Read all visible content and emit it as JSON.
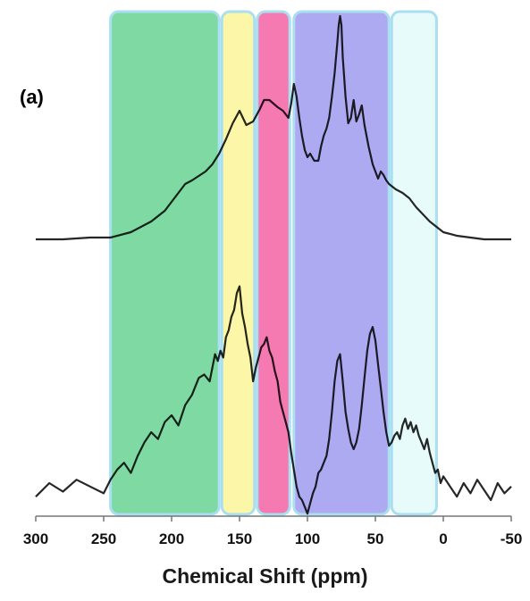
{
  "panel_label": "(a)",
  "chart_data": {
    "type": "line",
    "title": "",
    "xlabel": "Chemical Shift (ppm)",
    "ylabel": "",
    "xlim": [
      300,
      -50
    ],
    "x_reversed": true,
    "x_ticks": [
      300,
      250,
      200,
      150,
      100,
      50,
      0,
      -50
    ],
    "x_tick_labels": [
      "300",
      "250",
      "200",
      "150",
      "100",
      "50",
      "0",
      "-50"
    ],
    "grid": false,
    "regions": [
      {
        "from": 245,
        "to": 165,
        "color": "#7fd9a3"
      },
      {
        "from": 163,
        "to": 139,
        "color": "#fbf6a8"
      },
      {
        "from": 137,
        "to": 113,
        "color": "#f57ab2"
      },
      {
        "from": 110,
        "to": 40,
        "color": "#aeaaf2"
      },
      {
        "from": 38,
        "to": 5,
        "color": "#e6fbfa"
      }
    ],
    "series": [
      {
        "x": [
          300,
          280,
          260,
          250,
          245,
          230,
          215,
          205,
          195,
          190,
          185,
          175,
          170,
          165,
          160,
          155,
          150,
          145,
          140,
          135,
          132,
          128,
          122,
          118,
          114,
          112,
          110,
          108,
          106,
          104,
          102,
          100,
          98,
          95,
          92,
          90,
          88,
          86,
          84,
          82,
          80,
          78,
          77,
          76,
          75,
          74,
          72,
          70,
          68,
          66,
          64,
          62,
          60,
          58,
          55,
          52,
          50,
          48,
          46,
          44,
          42,
          40,
          35,
          30,
          25,
          20,
          10,
          5,
          0,
          -10,
          -20,
          -30,
          -40,
          -50
        ],
        "y": [
          0.0,
          0.0,
          0.01,
          0.01,
          0.01,
          0.04,
          0.1,
          0.16,
          0.26,
          0.31,
          0.33,
          0.38,
          0.42,
          0.48,
          0.56,
          0.65,
          0.72,
          0.64,
          0.66,
          0.73,
          0.78,
          0.78,
          0.74,
          0.72,
          0.68,
          0.76,
          0.87,
          0.8,
          0.68,
          0.58,
          0.5,
          0.46,
          0.48,
          0.44,
          0.44,
          0.52,
          0.58,
          0.62,
          0.68,
          0.8,
          0.93,
          1.1,
          1.2,
          1.25,
          1.2,
          1.02,
          0.8,
          0.65,
          0.68,
          0.78,
          0.66,
          0.7,
          0.75,
          0.64,
          0.52,
          0.42,
          0.38,
          0.34,
          0.38,
          0.36,
          0.33,
          0.31,
          0.28,
          0.26,
          0.23,
          0.18,
          0.1,
          0.07,
          0.04,
          0.02,
          0.01,
          0.0,
          0.0,
          0.0
        ]
      },
      {
        "x": [
          300,
          290,
          280,
          270,
          260,
          250,
          245,
          240,
          235,
          230,
          225,
          220,
          215,
          210,
          205,
          200,
          195,
          190,
          185,
          180,
          176,
          172,
          168,
          166,
          164,
          162,
          160,
          158,
          156,
          154,
          152,
          150,
          148,
          146,
          144,
          142,
          140,
          138,
          136,
          134,
          132,
          130,
          128,
          126,
          124,
          122,
          120,
          118,
          116,
          114,
          112,
          110,
          108,
          106,
          104,
          102,
          100,
          98,
          96,
          94,
          92,
          90,
          88,
          86,
          84,
          82,
          80,
          78,
          76,
          74,
          72,
          70,
          68,
          66,
          64,
          62,
          60,
          58,
          56,
          54,
          52,
          50,
          48,
          46,
          44,
          42,
          40,
          38,
          36,
          34,
          32,
          30,
          28,
          26,
          24,
          22,
          20,
          18,
          16,
          14,
          12,
          10,
          8,
          6,
          4,
          2,
          0,
          -5,
          -10,
          -15,
          -20,
          -25,
          -30,
          -35,
          -40,
          -45,
          -50
        ],
        "y": [
          0.02,
          0.1,
          0.05,
          0.12,
          0.08,
          0.04,
          0.12,
          0.18,
          0.22,
          0.16,
          0.26,
          0.34,
          0.4,
          0.36,
          0.46,
          0.5,
          0.44,
          0.56,
          0.62,
          0.72,
          0.74,
          0.7,
          0.86,
          0.82,
          0.88,
          0.84,
          0.96,
          1.0,
          1.08,
          1.12,
          1.22,
          1.26,
          1.1,
          1.02,
          0.92,
          0.84,
          0.7,
          0.78,
          0.84,
          0.9,
          0.92,
          0.96,
          0.88,
          0.84,
          0.76,
          0.7,
          0.58,
          0.52,
          0.46,
          0.4,
          0.28,
          0.18,
          0.08,
          0.02,
          0.0,
          -0.04,
          -0.08,
          -0.02,
          0.04,
          0.08,
          0.16,
          0.18,
          0.22,
          0.26,
          0.36,
          0.52,
          0.7,
          0.82,
          0.86,
          0.7,
          0.52,
          0.42,
          0.34,
          0.3,
          0.34,
          0.42,
          0.56,
          0.72,
          0.88,
          0.98,
          1.02,
          0.94,
          0.8,
          0.66,
          0.52,
          0.4,
          0.32,
          0.34,
          0.38,
          0.4,
          0.36,
          0.44,
          0.48,
          0.42,
          0.46,
          0.4,
          0.44,
          0.38,
          0.34,
          0.3,
          0.36,
          0.28,
          0.22,
          0.16,
          0.18,
          0.1,
          0.14,
          0.08,
          0.02,
          0.1,
          0.04,
          0.12,
          0.06,
          0.0,
          0.1,
          0.04,
          0.08
        ]
      }
    ]
  }
}
